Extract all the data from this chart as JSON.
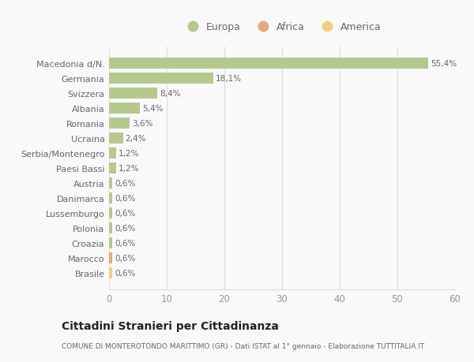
{
  "categories": [
    "Macedonia d/N.",
    "Germania",
    "Svizzera",
    "Albania",
    "Romania",
    "Ucraina",
    "Serbia/Montenegro",
    "Paesi Bassi",
    "Austria",
    "Danimarca",
    "Lussemburgo",
    "Polonia",
    "Croazia",
    "Marocco",
    "Brasile"
  ],
  "values": [
    55.4,
    18.1,
    8.4,
    5.4,
    3.6,
    2.4,
    1.2,
    1.2,
    0.6,
    0.6,
    0.6,
    0.6,
    0.6,
    0.6,
    0.6
  ],
  "labels": [
    "55,4%",
    "18,1%",
    "8,4%",
    "5,4%",
    "3,6%",
    "2,4%",
    "1,2%",
    "1,2%",
    "0,6%",
    "0,6%",
    "0,6%",
    "0,6%",
    "0,6%",
    "0,6%",
    "0,6%"
  ],
  "bar_colors": [
    "#b5c98e",
    "#b5c98e",
    "#b5c98e",
    "#b5c98e",
    "#b5c98e",
    "#b5c98e",
    "#b5c98e",
    "#b5c98e",
    "#b5c98e",
    "#b5c98e",
    "#b5c98e",
    "#b5c98e",
    "#b5c98e",
    "#e8a87c",
    "#f0d080"
  ],
  "legend": [
    {
      "label": "Europa",
      "color": "#b5c98e"
    },
    {
      "label": "Africa",
      "color": "#e8a87c"
    },
    {
      "label": "America",
      "color": "#f0d080"
    }
  ],
  "xlim": [
    0,
    60
  ],
  "xticks": [
    0,
    10,
    20,
    30,
    40,
    50,
    60
  ],
  "title": "Cittadini Stranieri per Cittadinanza",
  "subtitle": "COMUNE DI MONTEROTONDO MARITTIMO (GR) - Dati ISTAT al 1° gennaio - Elaborazione TUTTITALIA.IT",
  "background_color": "#f9f9f9",
  "grid_color": "#dddddd",
  "bar_height": 0.72
}
